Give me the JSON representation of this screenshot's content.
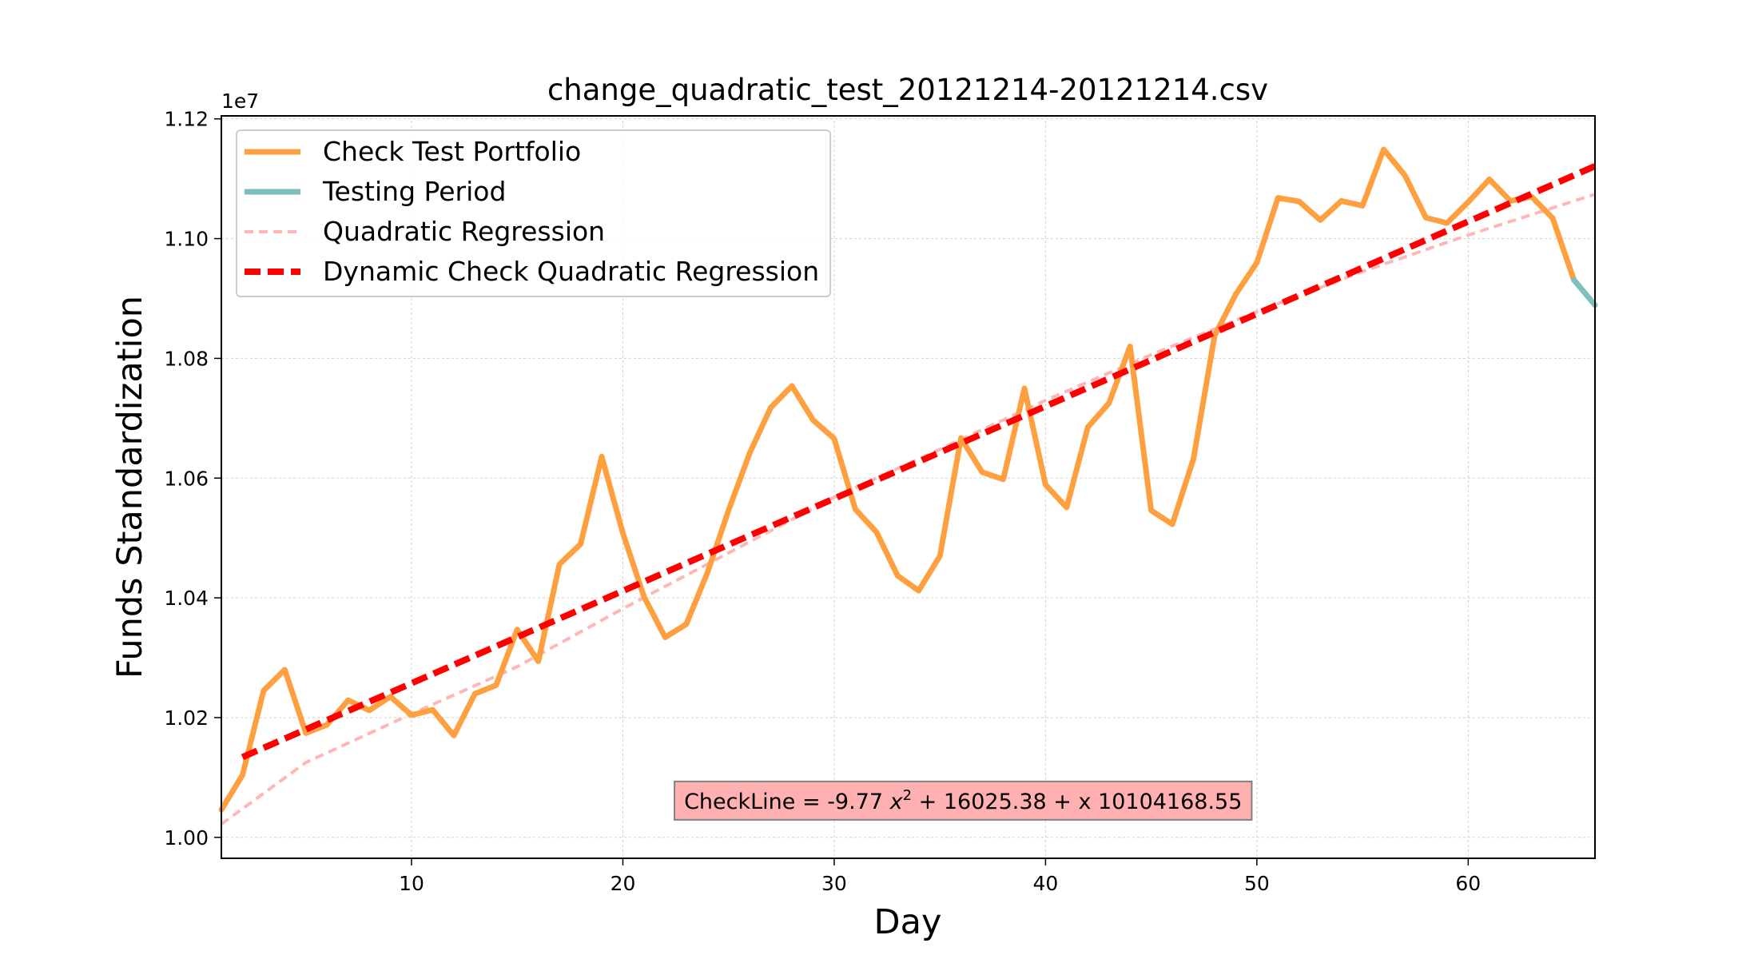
{
  "chart_data": {
    "type": "line",
    "title": "change_quadratic_test_20121214-20121214.csv",
    "xlabel": "Day",
    "ylabel": "Funds Standardization",
    "y_offset_label": "1e7",
    "xlim": [
      1,
      66
    ],
    "ylim": [
      0.9965,
      1.1205
    ],
    "x_ticks": [
      10,
      20,
      30,
      40,
      50,
      60
    ],
    "y_ticks": [
      1.0,
      1.02,
      1.04,
      1.06,
      1.08,
      1.1,
      1.12
    ],
    "y_tick_labels": [
      "1.00",
      "1.02",
      "1.04",
      "1.06",
      "1.08",
      "1.10",
      "1.12"
    ],
    "grid": true,
    "legend_position": "top-left",
    "colors": {
      "portfolio": "#ffa040",
      "testing": "#80bfbf",
      "quadratic": "#ffb6b6",
      "dynamic": "#ff0000",
      "annotation_bg": "#ffb0b0"
    },
    "series": [
      {
        "name": "Check Test Portfolio",
        "style": "solid",
        "x": [
          1,
          2,
          3,
          4,
          5,
          6,
          7,
          8,
          9,
          10,
          11,
          12,
          13,
          14,
          15,
          16,
          17,
          18,
          19,
          20,
          21,
          22,
          23,
          24,
          25,
          26,
          27,
          28,
          29,
          30,
          31,
          32,
          33,
          34,
          35,
          36,
          37,
          38,
          39,
          40,
          41,
          42,
          43,
          44,
          45,
          46,
          47,
          48,
          49,
          50,
          51,
          52,
          53,
          54,
          55,
          56,
          57,
          58,
          59,
          60,
          61,
          62,
          63,
          64,
          65
        ],
        "values": [
          1.0046,
          1.0104,
          1.0245,
          1.028,
          1.0174,
          1.0188,
          1.0229,
          1.0212,
          1.0235,
          1.0204,
          1.0213,
          1.017,
          1.024,
          1.0254,
          1.0347,
          1.0294,
          1.0456,
          1.049,
          1.0636,
          1.0508,
          1.0402,
          1.0334,
          1.0356,
          1.0442,
          1.0546,
          1.0642,
          1.0718,
          1.0754,
          1.0697,
          1.0666,
          1.0548,
          1.051,
          1.0437,
          1.0412,
          1.047,
          1.0667,
          1.061,
          1.0598,
          1.075,
          1.0589,
          1.0551,
          1.0685,
          1.0725,
          1.082,
          1.0546,
          1.0523,
          1.0632,
          1.0838,
          1.0907,
          1.096,
          1.1068,
          1.1062,
          1.1031,
          1.1063,
          1.1055,
          1.1149,
          1.1106,
          1.1035,
          1.1026,
          1.1061,
          1.1099,
          1.1063,
          1.107,
          1.1034,
          1.0931
        ]
      },
      {
        "name": "Testing Period",
        "style": "solid",
        "x": [
          65,
          66
        ],
        "values": [
          1.0931,
          1.0889
        ]
      },
      {
        "name": "Quadratic Regression",
        "style": "dashed",
        "x": [
          1,
          5,
          10,
          15,
          20,
          25,
          30,
          35,
          40,
          45,
          50,
          55,
          60,
          66
        ],
        "values": [
          1.0022,
          1.0125,
          1.0206,
          1.0285,
          1.0382,
          1.0475,
          1.0568,
          1.0648,
          1.073,
          1.0806,
          1.0878,
          1.0945,
          1.1006,
          1.1074
        ]
      },
      {
        "name": "Dynamic Check Quadratic Regression",
        "style": "dashed",
        "x": [
          2,
          66
        ],
        "values": [
          1.0134,
          1.1121
        ]
      }
    ],
    "annotation": {
      "prefix": "CheckLine = -9.77 ",
      "var": "x",
      "sup": "2",
      "suffix": " + 16025.38 + x 10104168.55",
      "x": 36.1,
      "y": 1.006
    }
  }
}
